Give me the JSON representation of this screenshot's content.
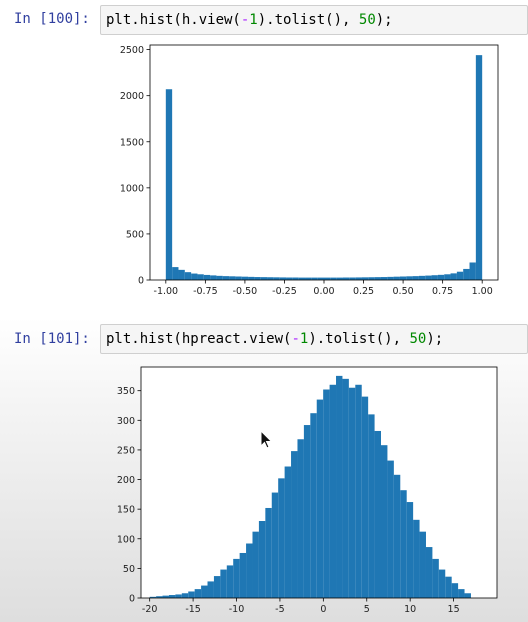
{
  "cells": [
    {
      "prompt": "In [100]:",
      "code_parts": [
        "plt.hist(h.view(",
        "-",
        "1",
        ").tolist(), ",
        "50",
        ");"
      ]
    },
    {
      "prompt": "In [101]:",
      "code_parts": [
        "plt.hist(hpreact.view(",
        "-",
        "1",
        ").tolist(), ",
        "50",
        ");"
      ]
    }
  ],
  "chart_data": [
    {
      "type": "bar",
      "title": "",
      "xlabel": "",
      "ylabel": "",
      "xlim": [
        -1.1,
        1.1
      ],
      "ylim": [
        0,
        2550
      ],
      "xticks": [
        -1.0,
        -0.75,
        -0.5,
        -0.25,
        0.0,
        0.25,
        0.5,
        0.75,
        1.0
      ],
      "xtick_labels": [
        "-1.00",
        "-0.75",
        "-0.50",
        "-0.25",
        "0.00",
        "0.25",
        "0.50",
        "0.75",
        "1.00"
      ],
      "yticks": [
        0,
        500,
        1000,
        1500,
        2000,
        2500
      ],
      "bin_start": -1.0,
      "bin_width": 0.04,
      "values": [
        2070,
        140,
        110,
        85,
        70,
        62,
        55,
        50,
        45,
        42,
        40,
        38,
        36,
        34,
        32,
        31,
        30,
        29,
        28,
        27,
        27,
        26,
        26,
        26,
        26,
        26,
        26,
        26,
        27,
        27,
        28,
        29,
        30,
        31,
        32,
        34,
        36,
        38,
        40,
        42,
        45,
        48,
        52,
        56,
        62,
        72,
        90,
        120,
        190,
        2440
      ],
      "color": "#1f77b4",
      "grid": false
    },
    {
      "type": "bar",
      "title": "",
      "xlabel": "",
      "ylabel": "",
      "xlim": [
        -21,
        20
      ],
      "ylim": [
        0,
        390
      ],
      "xticks": [
        -20,
        -15,
        -10,
        -5,
        0,
        5,
        10,
        15
      ],
      "xtick_labels": [
        "-20",
        "-15",
        "-10",
        "-5",
        "0",
        "5",
        "10",
        "15"
      ],
      "yticks": [
        0,
        50,
        100,
        150,
        200,
        250,
        300,
        350
      ],
      "bin_start": -20,
      "bin_width": 0.74,
      "values": [
        2,
        3,
        4,
        5,
        6,
        8,
        11,
        15,
        21,
        28,
        37,
        48,
        55,
        66,
        76,
        92,
        112,
        130,
        152,
        178,
        202,
        222,
        248,
        268,
        292,
        312,
        335,
        352,
        360,
        375,
        370,
        355,
        360,
        340,
        310,
        282,
        258,
        232,
        208,
        182,
        162,
        132,
        112,
        86,
        66,
        48,
        36,
        25,
        15,
        8
      ],
      "color": "#1f77b4",
      "grid": false
    }
  ]
}
